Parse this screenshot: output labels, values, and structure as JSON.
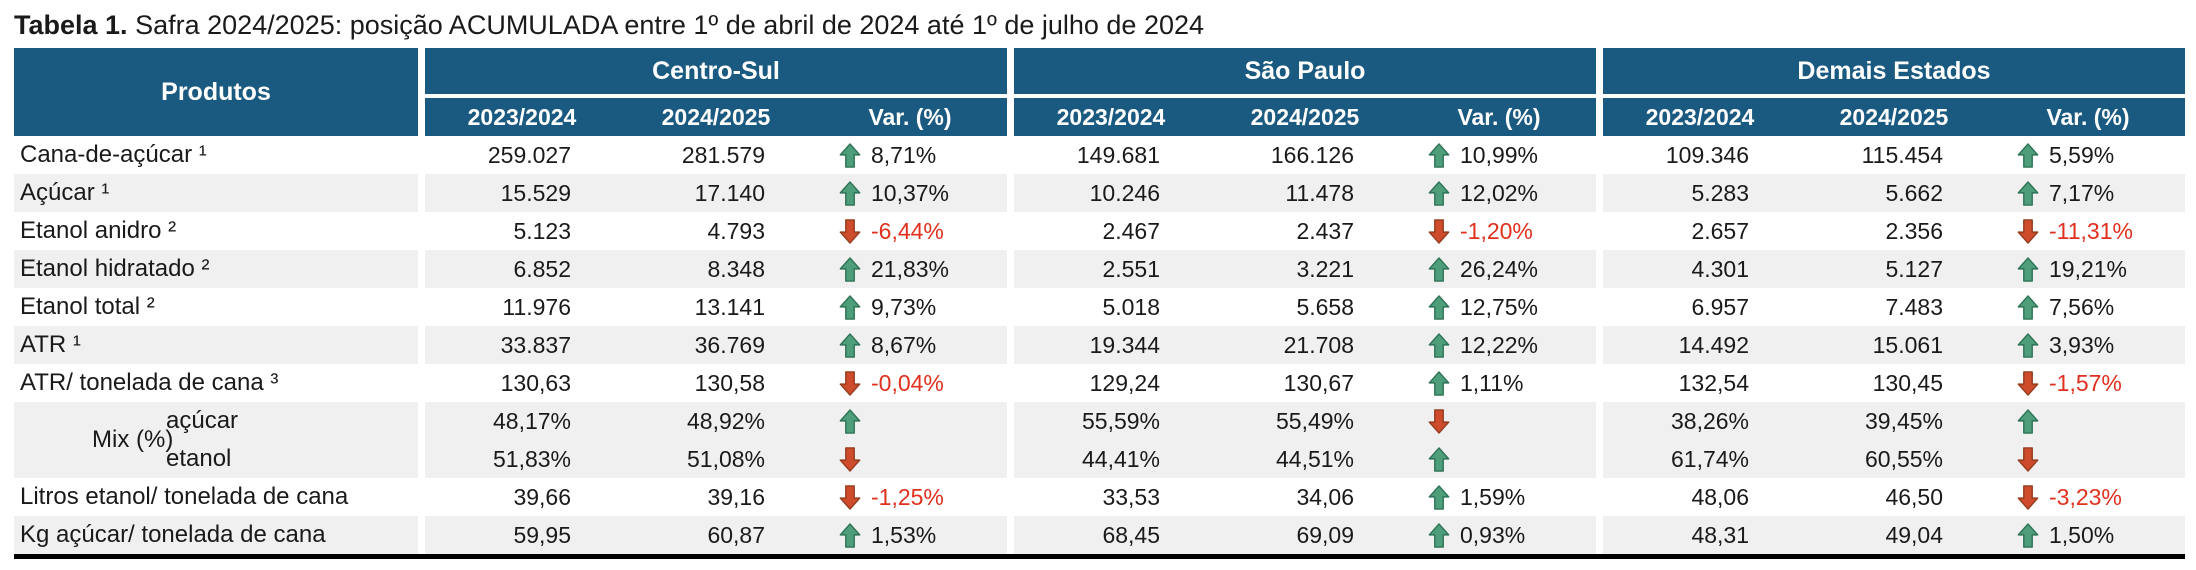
{
  "title": {
    "prefix": "Tabela 1.",
    "text": " Safra 2024/2025: posição ACUMULADA entre 1º de abril de 2024 até 1º de julho de 2024"
  },
  "colors": {
    "header_blue": "#1B5A80",
    "stripe_gray": "#F0F0F0",
    "up_arrow_green": "#4E9E7C",
    "up_arrow_border": "#2E7355",
    "down_arrow_red": "#CE4B2C",
    "down_arrow_border": "#953D1E",
    "negative_text_red": "#E0301E"
  },
  "table": {
    "products_header": "Produtos",
    "group_headers": [
      "Centro-Sul",
      "São Paulo",
      "Demais Estados"
    ],
    "sub_headers": [
      "2023/2024",
      "2024/2025",
      "Var. (%)"
    ],
    "mix_group_label": "Mix (%)",
    "rows": [
      {
        "product": "Cana-de-açúcar ¹",
        "groups": [
          {
            "y1": "259.027",
            "y2": "281.579",
            "var": "8,71%",
            "dir": "up"
          },
          {
            "y1": "149.681",
            "y2": "166.126",
            "var": "10,99%",
            "dir": "up"
          },
          {
            "y1": "109.346",
            "y2": "115.454",
            "var": "5,59%",
            "dir": "up"
          }
        ]
      },
      {
        "product": "Açúcar ¹",
        "groups": [
          {
            "y1": "15.529",
            "y2": "17.140",
            "var": "10,37%",
            "dir": "up"
          },
          {
            "y1": "10.246",
            "y2": "11.478",
            "var": "12,02%",
            "dir": "up"
          },
          {
            "y1": "5.283",
            "y2": "5.662",
            "var": "7,17%",
            "dir": "up"
          }
        ]
      },
      {
        "product": "Etanol anidro ²",
        "groups": [
          {
            "y1": "5.123",
            "y2": "4.793",
            "var": "-6,44%",
            "dir": "down"
          },
          {
            "y1": "2.467",
            "y2": "2.437",
            "var": "-1,20%",
            "dir": "down"
          },
          {
            "y1": "2.657",
            "y2": "2.356",
            "var": "-11,31%",
            "dir": "down"
          }
        ]
      },
      {
        "product": "Etanol hidratado ²",
        "groups": [
          {
            "y1": "6.852",
            "y2": "8.348",
            "var": "21,83%",
            "dir": "up"
          },
          {
            "y1": "2.551",
            "y2": "3.221",
            "var": "26,24%",
            "dir": "up"
          },
          {
            "y1": "4.301",
            "y2": "5.127",
            "var": "19,21%",
            "dir": "up"
          }
        ]
      },
      {
        "product": "Etanol total ²",
        "groups": [
          {
            "y1": "11.976",
            "y2": "13.141",
            "var": "9,73%",
            "dir": "up"
          },
          {
            "y1": "5.018",
            "y2": "5.658",
            "var": "12,75%",
            "dir": "up"
          },
          {
            "y1": "6.957",
            "y2": "7.483",
            "var": "7,56%",
            "dir": "up"
          }
        ]
      },
      {
        "product": "ATR ¹",
        "groups": [
          {
            "y1": "33.837",
            "y2": "36.769",
            "var": "8,67%",
            "dir": "up"
          },
          {
            "y1": "19.344",
            "y2": "21.708",
            "var": "12,22%",
            "dir": "up"
          },
          {
            "y1": "14.492",
            "y2": "15.061",
            "var": "3,93%",
            "dir": "up"
          }
        ]
      },
      {
        "product": "ATR/ tonelada de cana ³",
        "groups": [
          {
            "y1": "130,63",
            "y2": "130,58",
            "var": "-0,04%",
            "dir": "down"
          },
          {
            "y1": "129,24",
            "y2": "130,67",
            "var": "1,11%",
            "dir": "up"
          },
          {
            "y1": "132,54",
            "y2": "130,45",
            "var": "-1,57%",
            "dir": "down"
          }
        ]
      },
      {
        "product": "açúcar",
        "groups": [
          {
            "y1": "48,17%",
            "y2": "48,92%",
            "var": "",
            "dir": "up"
          },
          {
            "y1": "55,59%",
            "y2": "55,49%",
            "var": "",
            "dir": "down"
          },
          {
            "y1": "38,26%",
            "y2": "39,45%",
            "var": "",
            "dir": "up"
          }
        ]
      },
      {
        "product": "etanol",
        "groups": [
          {
            "y1": "51,83%",
            "y2": "51,08%",
            "var": "",
            "dir": "down"
          },
          {
            "y1": "44,41%",
            "y2": "44,51%",
            "var": "",
            "dir": "up"
          },
          {
            "y1": "61,74%",
            "y2": "60,55%",
            "var": "",
            "dir": "down"
          }
        ]
      },
      {
        "product": "Litros etanol/ tonelada de cana",
        "groups": [
          {
            "y1": "39,66",
            "y2": "39,16",
            "var": "-1,25%",
            "dir": "down"
          },
          {
            "y1": "33,53",
            "y2": "34,06",
            "var": "1,59%",
            "dir": "up"
          },
          {
            "y1": "48,06",
            "y2": "46,50",
            "var": "-3,23%",
            "dir": "down"
          }
        ]
      },
      {
        "product": "Kg açúcar/ tonelada de cana",
        "groups": [
          {
            "y1": "59,95",
            "y2": "60,87",
            "var": "1,53%",
            "dir": "up"
          },
          {
            "y1": "68,45",
            "y2": "69,09",
            "var": "0,93%",
            "dir": "up"
          },
          {
            "y1": "48,31",
            "y2": "49,04",
            "var": "1,50%",
            "dir": "up"
          }
        ]
      }
    ]
  }
}
